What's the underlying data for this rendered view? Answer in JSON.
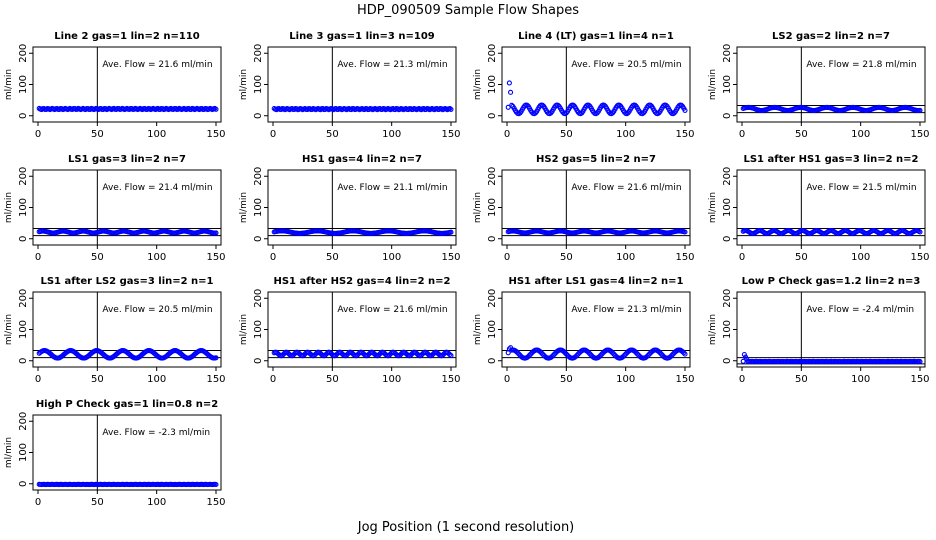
{
  "page": {
    "title": "HDP_090509  Sample Flow Shapes",
    "xlabel": "Jog Position (1 second resolution)"
  },
  "chart_data": [
    {
      "type": "scatter",
      "title": "Line 2 gas=1 lin=2 n=110",
      "annotation": "Ave. Flow = 21.6  ml/min",
      "ylabel": "ml/min",
      "xlim": [
        0,
        150
      ],
      "ylim": [
        -20,
        220
      ],
      "yticks": [
        0,
        100,
        200
      ],
      "xticks": [
        0,
        50,
        100,
        150
      ],
      "vline": 50,
      "hlines": [],
      "mean": 21.6,
      "amp": 2,
      "period": 0,
      "first": [],
      "series": [
        {
          "x_range": [
            1,
            150
          ],
          "approx_y": 21.6
        }
      ]
    },
    {
      "type": "scatter",
      "title": "Line 3 gas=1 lin=3 n=109",
      "annotation": "Ave. Flow = 21.3  ml/min",
      "ylabel": "ml/min",
      "xlim": [
        0,
        150
      ],
      "ylim": [
        -20,
        220
      ],
      "yticks": [
        0,
        100,
        200
      ],
      "xticks": [
        0,
        50,
        100,
        150
      ],
      "vline": 50,
      "hlines": [],
      "mean": 21.3,
      "amp": 2,
      "period": 0,
      "first": [],
      "series": [
        {
          "x_range": [
            1,
            150
          ],
          "approx_y": 21.3
        }
      ]
    },
    {
      "type": "scatter",
      "title": "Line 4 (LT) gas=1 lin=4 n=1",
      "annotation": "Ave. Flow = 20.5  ml/min",
      "ylabel": "ml/min",
      "xlim": [
        0,
        150
      ],
      "ylim": [
        -20,
        220
      ],
      "yticks": [
        0,
        100,
        200
      ],
      "xticks": [
        0,
        50,
        100,
        150
      ],
      "vline": 50,
      "hlines": [],
      "mean": 20.5,
      "amp": 14,
      "period": 13,
      "first": [
        [
          2,
          105
        ],
        [
          3,
          75
        ]
      ],
      "series": [
        {
          "x_range": [
            1,
            150
          ],
          "approx_y": 20.5
        }
      ]
    },
    {
      "type": "scatter",
      "title": "LS2 gas=2 lin=2 n=7",
      "annotation": "Ave. Flow = 21.8  ml/min",
      "ylabel": "ml/min",
      "xlim": [
        0,
        150
      ],
      "ylim": [
        -20,
        220
      ],
      "yticks": [
        0,
        100,
        200
      ],
      "xticks": [
        0,
        50,
        100,
        150
      ],
      "vline": 50,
      "hlines": [
        10,
        33
      ],
      "mean": 21.8,
      "amp": 5,
      "period": 22,
      "first": [],
      "series": [
        {
          "x_range": [
            1,
            150
          ],
          "approx_y": 21.8
        }
      ]
    },
    {
      "type": "scatter",
      "title": "LS1 gas=3 lin=2 n=7",
      "annotation": "Ave. Flow = 21.4  ml/min",
      "ylabel": "ml/min",
      "xlim": [
        0,
        150
      ],
      "ylim": [
        -20,
        220
      ],
      "yticks": [
        0,
        100,
        200
      ],
      "xticks": [
        0,
        50,
        100,
        150
      ],
      "vline": 50,
      "hlines": [
        10,
        33
      ],
      "mean": 21.4,
      "amp": 3,
      "period": 17,
      "first": [],
      "series": [
        {
          "x_range": [
            1,
            150
          ],
          "approx_y": 21.4
        }
      ]
    },
    {
      "type": "scatter",
      "title": "HS1 gas=4 lin=2 n=7",
      "annotation": "Ave. Flow = 21.1  ml/min",
      "ylabel": "ml/min",
      "xlim": [
        0,
        150
      ],
      "ylim": [
        -20,
        220
      ],
      "yticks": [
        0,
        100,
        200
      ],
      "xticks": [
        0,
        50,
        100,
        150
      ],
      "vline": 50,
      "hlines": [
        10,
        33
      ],
      "mean": 21.1,
      "amp": 4,
      "period": 30,
      "first": [],
      "series": [
        {
          "x_range": [
            1,
            150
          ],
          "approx_y": 21.1
        }
      ]
    },
    {
      "type": "scatter",
      "title": "HS2 gas=5 lin=2 n=7",
      "annotation": "Ave. Flow = 21.6  ml/min",
      "ylabel": "ml/min",
      "xlim": [
        0,
        150
      ],
      "ylim": [
        -20,
        220
      ],
      "yticks": [
        0,
        100,
        200
      ],
      "xticks": [
        0,
        50,
        100,
        150
      ],
      "vline": 50,
      "hlines": [
        10,
        33
      ],
      "mean": 21.6,
      "amp": 3,
      "period": 20,
      "first": [],
      "series": [
        {
          "x_range": [
            1,
            150
          ],
          "approx_y": 21.6
        }
      ]
    },
    {
      "type": "scatter",
      "title": "LS1 after HS1 gas=3 lin=2 n=2",
      "annotation": "Ave. Flow = 21.5  ml/min",
      "ylabel": "ml/min",
      "xlim": [
        0,
        150
      ],
      "ylim": [
        -20,
        220
      ],
      "yticks": [
        0,
        100,
        200
      ],
      "xticks": [
        0,
        50,
        100,
        150
      ],
      "vline": 50,
      "hlines": [
        10,
        33
      ],
      "mean": 21.5,
      "amp": 5,
      "period": 12,
      "first": [],
      "series": [
        {
          "x_range": [
            1,
            150
          ],
          "approx_y": 21.5
        }
      ]
    },
    {
      "type": "scatter",
      "title": "LS1 after LS2 gas=3 lin=2 n=1",
      "annotation": "Ave. Flow = 20.5  ml/min",
      "ylabel": "ml/min",
      "xlim": [
        0,
        150
      ],
      "ylim": [
        -20,
        220
      ],
      "yticks": [
        0,
        100,
        200
      ],
      "xticks": [
        0,
        50,
        100,
        150
      ],
      "vline": 50,
      "hlines": [
        10,
        33
      ],
      "mean": 20.5,
      "amp": 12,
      "period": 22,
      "first": [],
      "series": [
        {
          "x_range": [
            1,
            150
          ],
          "approx_y": 20.5
        }
      ]
    },
    {
      "type": "scatter",
      "title": "HS1 after HS2 gas=4 lin=2 n=2",
      "annotation": "Ave. Flow = 21.6  ml/min",
      "ylabel": "ml/min",
      "xlim": [
        0,
        150
      ],
      "ylim": [
        -20,
        220
      ],
      "yticks": [
        0,
        100,
        200
      ],
      "xticks": [
        0,
        50,
        100,
        150
      ],
      "vline": 50,
      "hlines": [
        10,
        33
      ],
      "mean": 21.6,
      "amp": 6,
      "period": 9,
      "first": [],
      "series": [
        {
          "x_range": [
            1,
            150
          ],
          "approx_y": 21.6
        }
      ]
    },
    {
      "type": "scatter",
      "title": "HS1 after LS1 gas=4 lin=2 n=1",
      "annotation": "Ave. Flow = 21.3  ml/min",
      "ylabel": "ml/min",
      "xlim": [
        0,
        150
      ],
      "ylim": [
        -20,
        220
      ],
      "yticks": [
        0,
        100,
        200
      ],
      "xticks": [
        0,
        50,
        100,
        150
      ],
      "vline": 50,
      "hlines": [
        10,
        33
      ],
      "mean": 21.3,
      "amp": 13,
      "period": 20,
      "first": [
        [
          2,
          38
        ],
        [
          3,
          42
        ]
      ],
      "series": [
        {
          "x_range": [
            1,
            150
          ],
          "approx_y": 21.3
        }
      ]
    },
    {
      "type": "scatter",
      "title": "Low P Check gas=1.2 lin=2 n=3",
      "annotation": "Ave. Flow = -2.4  ml/min",
      "ylabel": "ml/min",
      "xlim": [
        0,
        150
      ],
      "ylim": [
        -20,
        220
      ],
      "yticks": [
        0,
        100,
        200
      ],
      "xticks": [
        0,
        50,
        100,
        150
      ],
      "vline": 50,
      "hlines": [
        10,
        -10
      ],
      "mean": -2.4,
      "amp": 0.5,
      "period": 0,
      "first": [
        [
          2,
          20
        ],
        [
          3,
          12
        ],
        [
          4,
          6
        ]
      ],
      "series": [
        {
          "x_range": [
            1,
            150
          ],
          "approx_y": -2.4
        }
      ]
    },
    {
      "type": "scatter",
      "title": "High P Check gas=1 lin=0.8 n=2",
      "annotation": "Ave. Flow = -2.3  ml/min",
      "ylabel": "ml/min",
      "xlim": [
        0,
        150
      ],
      "ylim": [
        -20,
        220
      ],
      "yticks": [
        0,
        100,
        200
      ],
      "xticks": [
        0,
        50,
        100,
        150
      ],
      "vline": 50,
      "hlines": [],
      "mean": -2.3,
      "amp": 0.5,
      "period": 0,
      "first": [],
      "series": [
        {
          "x_range": [
            1,
            150
          ],
          "approx_y": -2.3
        }
      ]
    }
  ],
  "colors": {
    "points": "#0000ff",
    "axes": "#000000"
  }
}
